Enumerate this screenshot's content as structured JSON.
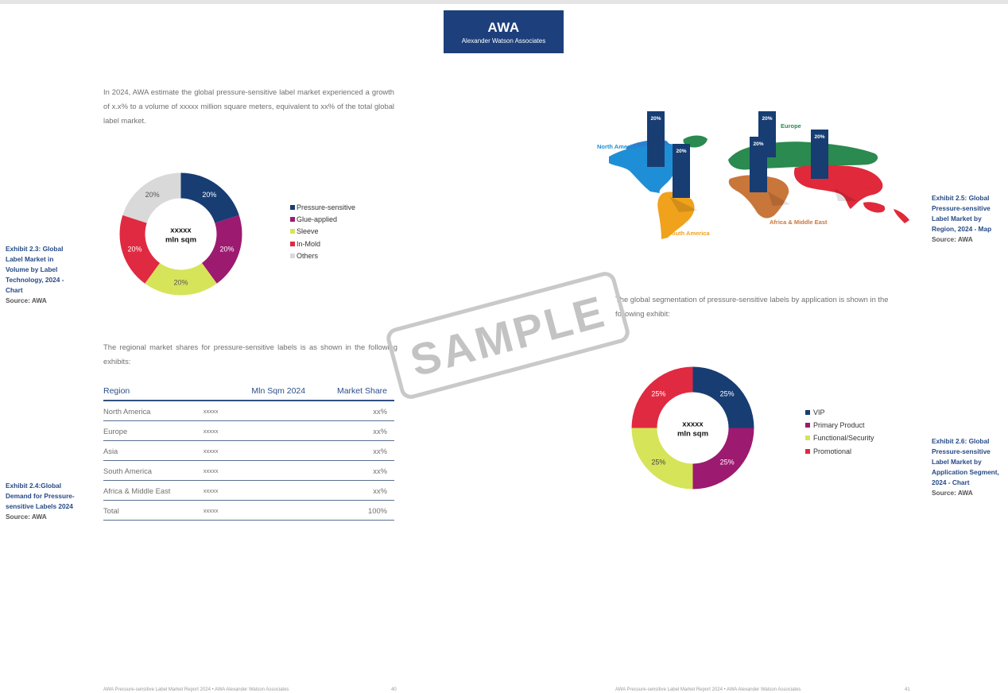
{
  "logo": {
    "title": "AWA",
    "subtitle": "Alexander Watson Associates"
  },
  "left": {
    "intro": "In 2024, AWA estimate the global pressure-sensitive label market experienced a growth of x.x% to a volume of xxxxx million square meters, equivalent to xx% of the total global label market.",
    "exhibit_23": {
      "title": "Exhibit 2.3: Global Label Market in Volume by Label Technology, 2024 - Chart",
      "source": "Source: AWA"
    },
    "regional_intro": "The regional market shares for pressure-sensitive labels is as shown in the following exhibits:",
    "exhibit_24": {
      "title": "Exhibit 2.4:Global Demand for Pressure-sensitive Labels 2024",
      "source": "Source: AWA"
    },
    "table": {
      "headers": [
        "Region",
        "Mln Sqm 2024",
        "Market Share"
      ],
      "rows": [
        [
          "North America",
          "xxxxx",
          "xx%"
        ],
        [
          "Europe",
          "xxxxx",
          "xx%"
        ],
        [
          "Asia",
          "xxxxx",
          "xx%"
        ],
        [
          "South America",
          "xxxxx",
          "xx%"
        ],
        [
          "Africa & Middle East",
          "xxxxx",
          "xx%"
        ],
        [
          "Total",
          "xxxxx",
          "100%"
        ]
      ]
    },
    "footer": "AWA Pressure-sensitive Label Market Report 2024 • AWA Alexander Watson Associates",
    "page_number": "40"
  },
  "right": {
    "exhibit_25": {
      "title": "Exhibit 2.5: Global Pressure-sensitive Label Market by Region, 2024 - Map",
      "source": "Source: AWA"
    },
    "application_intro": "The global segmentation of pressure-sensitive labels by application is shown in the following exhibit:",
    "exhibit_26": {
      "title": "Exhibit 2.6: Global Pressure-sensitive Label Market by Application Segment, 2024 - Chart",
      "source": "Source: AWA"
    },
    "footer": "AWA Pressure-sensitive Label Market Report 2024 • AWA Alexander Watson Associates",
    "page_number": "41"
  },
  "watermark": "SAMPLE",
  "map": {
    "regions": [
      {
        "name": "North America",
        "value": "20%",
        "color": "#1e8fd6"
      },
      {
        "name": "Europe",
        "value": "20%",
        "color": "#2a8a4f"
      },
      {
        "name": "Asia",
        "value": "20%",
        "color": "#e0293a"
      },
      {
        "name": "South America",
        "value": "20%",
        "color": "#f0a21c"
      },
      {
        "name": "Africa & Middle East",
        "value": "20%",
        "color": "#c9763b"
      }
    ],
    "bar_color": "#173d73"
  },
  "chart_data": [
    {
      "type": "pie",
      "center_label": [
        "xxxxx",
        "mln sqm"
      ],
      "categories": [
        "Pressure-sensitive",
        "Glue-applied",
        "Sleeve",
        "In-Mold",
        "Others"
      ],
      "values": [
        20,
        20,
        20,
        20,
        20
      ],
      "labels": [
        "20%",
        "20%",
        "20%",
        "20%",
        "20%"
      ],
      "colors": [
        "#173d73",
        "#9c1a6f",
        "#d6e45a",
        "#e02a41",
        "#d9d9d9"
      ],
      "label_colors": [
        "#ffffff",
        "#ffffff",
        "#555555",
        "#ffffff",
        "#555555"
      ],
      "legend": "right"
    },
    {
      "type": "pie",
      "center_label": [
        "xxxxx",
        "mln sqm"
      ],
      "categories": [
        "VIP",
        "Primary Product",
        "Functional/Security",
        "Promotional"
      ],
      "values": [
        25,
        25,
        25,
        25
      ],
      "labels": [
        "25%",
        "25%",
        "25%",
        "25%"
      ],
      "colors": [
        "#173d73",
        "#9c1a6f",
        "#d6e45a",
        "#e02a41"
      ],
      "label_colors": [
        "#ffffff",
        "#ffffff",
        "#444444",
        "#ffffff"
      ],
      "legend": "right"
    }
  ]
}
